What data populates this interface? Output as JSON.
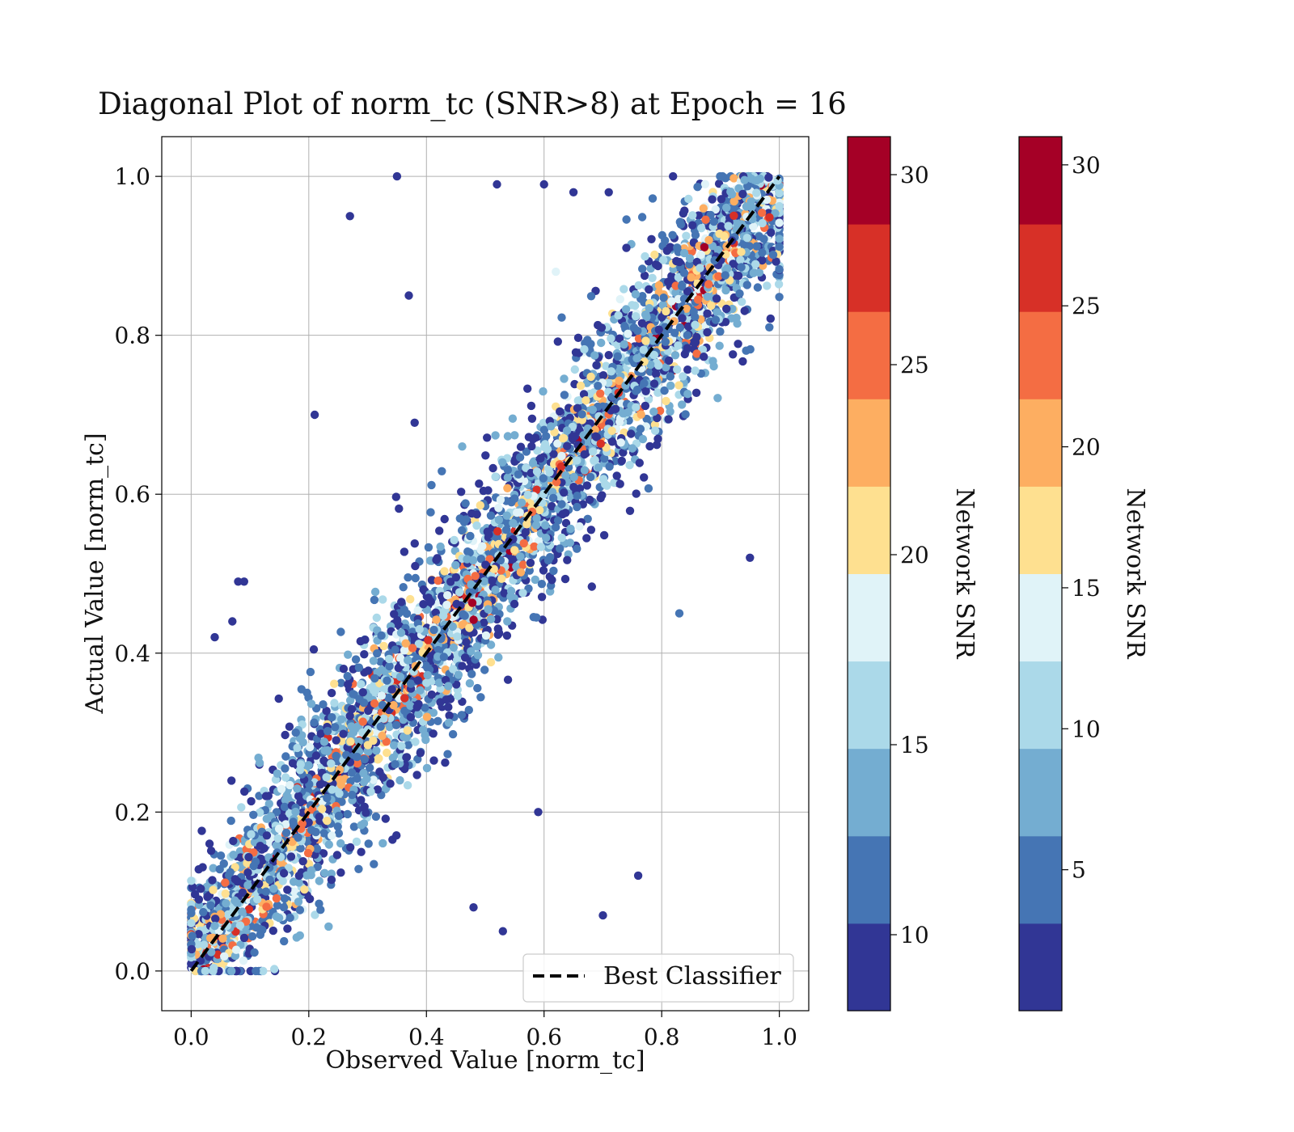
{
  "chart_data": {
    "type": "scatter",
    "title": "Diagonal Plot of norm_tc (SNR>8) at Epoch = 16",
    "xlabel": "Observed Value [norm_tc]",
    "ylabel": "Actual Value [norm_tc]",
    "xlim": [
      -0.05,
      1.05
    ],
    "ylim": [
      -0.05,
      1.05
    ],
    "xticks": [
      "0.0",
      "0.2",
      "0.4",
      "0.6",
      "0.8",
      "1.0"
    ],
    "yticks": [
      "0.0",
      "0.2",
      "0.4",
      "0.6",
      "0.8",
      "1.0"
    ],
    "grid": true,
    "legend": {
      "placement": "lower-right",
      "entries": [
        "Best Classifier"
      ]
    },
    "reference_line": {
      "label": "Best Classifier",
      "x": [
        0,
        1
      ],
      "y": [
        0,
        1
      ],
      "style": "dashed",
      "color": "#000000"
    },
    "colormap": [
      "#313695",
      "#4575b4",
      "#74add1",
      "#abd9e9",
      "#e0f3f8",
      "#fee090",
      "#fdae61",
      "#f46d43",
      "#d73027",
      "#a50026"
    ],
    "colorbars": [
      {
        "label": "Network SNR",
        "range": [
          8,
          31
        ],
        "ticks": [
          "10",
          "15",
          "20",
          "25",
          "30"
        ],
        "tick_values": [
          10,
          15,
          20,
          25,
          30
        ]
      },
      {
        "label": "Network SNR",
        "range": [
          0,
          31
        ],
        "ticks": [
          "5",
          "10",
          "15",
          "20",
          "25",
          "30"
        ],
        "tick_values": [
          5,
          10,
          15,
          20,
          25,
          30
        ]
      }
    ],
    "scatter_summary": {
      "point_count_estimate": 4500,
      "trend": "points clustered along y = x",
      "color_encoding": "Network SNR"
    },
    "series": [
      {
        "x": [
          0.35,
          0.27,
          0.37,
          0.38,
          0.95,
          0.83,
          0.21,
          0.08,
          0.09,
          0.07,
          0.04,
          0.48,
          0.53,
          0.76,
          0.7,
          0.59,
          0.52,
          0.6,
          0.65,
          0.71,
          0.62,
          0.74
        ],
        "y": [
          1.0,
          0.95,
          0.85,
          0.69,
          0.52,
          0.45,
          0.7,
          0.49,
          0.49,
          0.44,
          0.42,
          0.08,
          0.05,
          0.12,
          0.07,
          0.2,
          0.99,
          0.99,
          0.98,
          0.98,
          0.88,
          0.91
        ],
        "snr": [
          9,
          9,
          10,
          9,
          9,
          12,
          9,
          9,
          9,
          9,
          9,
          9,
          9,
          9,
          9,
          9,
          9,
          9,
          9,
          9,
          18,
          9
        ]
      }
    ]
  }
}
